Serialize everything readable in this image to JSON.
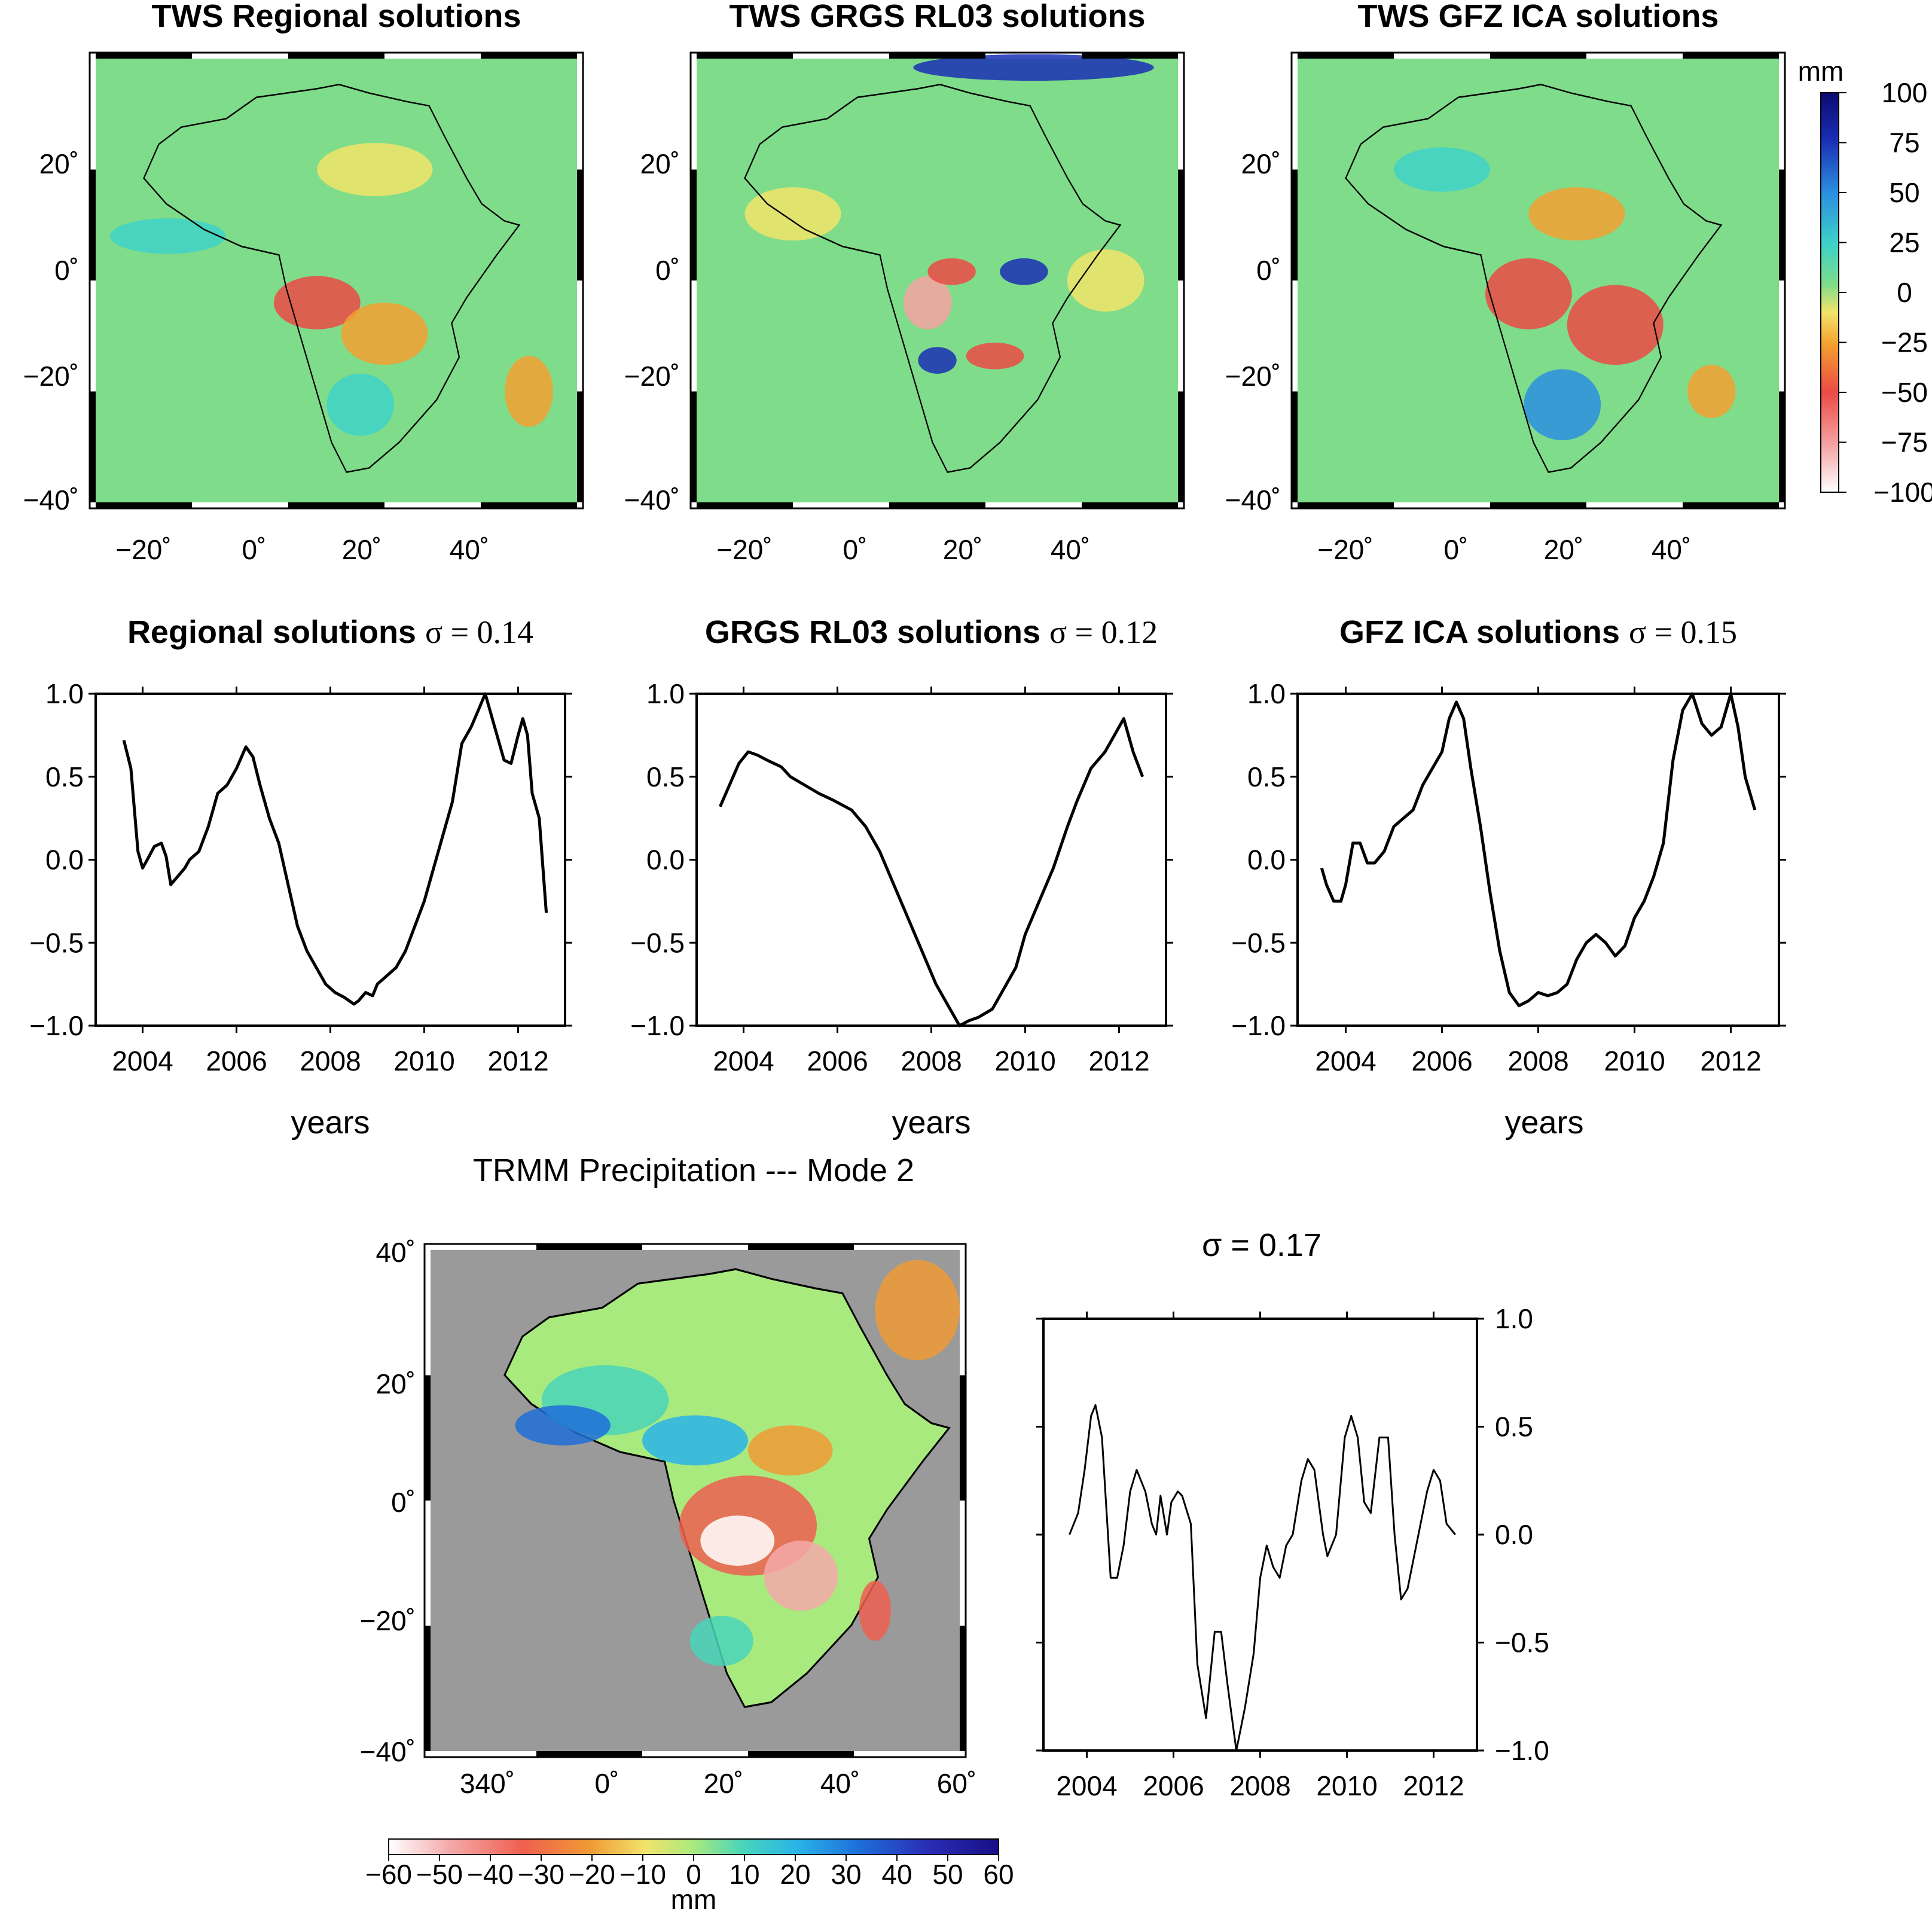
{
  "figure": {
    "map_titles": [
      "TWS Regional solutions",
      "TWS GRGS RL03 solutions",
      "TWS GFZ ICA solutions"
    ],
    "ts_titles": [
      {
        "name": "Regional solutions",
        "sigma": "σ = 0.14"
      },
      {
        "name": "GRGS RL03 solutions",
        "sigma": "σ = 0.12"
      },
      {
        "name": "GFZ ICA  solutions",
        "sigma": "σ = 0.15"
      }
    ],
    "trmm_title": "TRMM Precipitation --- Mode 2",
    "trmm_sigma": "σ = 0.17",
    "colorbar_unit": "mm",
    "colorbar_top_ticks": [
      "100",
      "75",
      "50",
      "25",
      "0",
      "−25",
      "−50",
      "−75",
      "−100"
    ],
    "colorbar_bottom_ticks": [
      "−60",
      "−50",
      "−40",
      "−30",
      "−20",
      "−10",
      "0",
      "10",
      "20",
      "30",
      "40",
      "50",
      "60"
    ],
    "map_lat_ticks": [
      "20˚",
      "0˚",
      "−20˚",
      "−40˚"
    ],
    "map_lon_ticks": [
      "−20˚",
      "0˚",
      "20˚",
      "40˚"
    ],
    "trmm_lat_ticks": [
      "40˚",
      "20˚",
      "0˚",
      "−20˚",
      "−40˚"
    ],
    "trmm_lon_ticks": [
      "340˚",
      "0˚",
      "20˚",
      "40˚",
      "60˚"
    ],
    "ts_y_ticks": [
      "1.0",
      "0.5",
      "0.0",
      "−0.5",
      "−1.0"
    ],
    "ts_x_ticks": [
      "2004",
      "2006",
      "2008",
      "2010",
      "2012"
    ],
    "xlabel": "years",
    "colors": {
      "ocean_green": "#7fdc8a",
      "land_gray": "#9a9a9a",
      "palette_top": [
        "#ffffff",
        "#f6a2a2",
        "#ec4a45",
        "#f3a030",
        "#f2e46a",
        "#7fdc8a",
        "#3ed2c8",
        "#2c8fe0",
        "#1a2fb5",
        "#0c0a70"
      ],
      "palette_bottom": [
        "#ffffff",
        "#f4a9a9",
        "#ef5f50",
        "#f09a35",
        "#f2e36c",
        "#a9ea7e",
        "#49d5b9",
        "#29b4e8",
        "#1e6fd8",
        "#2a2fb8",
        "#1a0f85"
      ]
    }
  },
  "chart_data": [
    {
      "type": "line",
      "title": "Regional solutions",
      "annotation": "σ = 0.14",
      "xlabel": "years",
      "ylabel": "",
      "xlim": [
        2003.0,
        2013.0
      ],
      "ylim": [
        -1.0,
        1.0
      ],
      "x": [
        2003.6,
        2003.75,
        2003.9,
        2004.0,
        2004.1,
        2004.25,
        2004.4,
        2004.5,
        2004.6,
        2004.75,
        2004.9,
        2005.0,
        2005.2,
        2005.4,
        2005.6,
        2005.8,
        2006.0,
        2006.2,
        2006.35,
        2006.5,
        2006.7,
        2006.9,
        2007.1,
        2007.3,
        2007.5,
        2007.7,
        2007.9,
        2008.1,
        2008.3,
        2008.5,
        2008.6,
        2008.75,
        2008.9,
        2009.0,
        2009.2,
        2009.4,
        2009.6,
        2009.8,
        2010.0,
        2010.2,
        2010.4,
        2010.6,
        2010.8,
        2011.0,
        2011.15,
        2011.3,
        2011.4,
        2011.55,
        2011.7,
        2011.85,
        2012.0,
        2012.1,
        2012.2,
        2012.3,
        2012.45,
        2012.6
      ],
      "values": [
        0.72,
        0.55,
        0.05,
        -0.05,
        0.0,
        0.08,
        0.1,
        0.02,
        -0.15,
        -0.1,
        -0.05,
        0.0,
        0.05,
        0.2,
        0.4,
        0.45,
        0.55,
        0.68,
        0.62,
        0.45,
        0.25,
        0.1,
        -0.15,
        -0.4,
        -0.55,
        -0.65,
        -0.75,
        -0.8,
        -0.83,
        -0.87,
        -0.85,
        -0.8,
        -0.82,
        -0.75,
        -0.7,
        -0.65,
        -0.55,
        -0.4,
        -0.25,
        -0.05,
        0.15,
        0.35,
        0.7,
        0.8,
        0.9,
        1.0,
        0.9,
        0.75,
        0.6,
        0.58,
        0.75,
        0.85,
        0.75,
        0.4,
        0.25,
        -0.32
      ]
    },
    {
      "type": "line",
      "title": "GRGS RL03 solutions",
      "annotation": "σ = 0.12",
      "xlabel": "years",
      "ylabel": "",
      "xlim": [
        2003.0,
        2013.0
      ],
      "ylim": [
        -1.0,
        1.0
      ],
      "x": [
        2003.5,
        2003.7,
        2003.9,
        2004.1,
        2004.3,
        2004.5,
        2004.8,
        2005.0,
        2005.3,
        2005.6,
        2005.9,
        2006.1,
        2006.3,
        2006.6,
        2006.9,
        2007.2,
        2007.5,
        2007.8,
        2008.1,
        2008.3,
        2008.5,
        2008.6,
        2008.8,
        2009.0,
        2009.3,
        2009.5,
        2009.8,
        2010.0,
        2010.3,
        2010.6,
        2010.9,
        2011.1,
        2011.4,
        2011.7,
        2011.9,
        2012.1,
        2012.3,
        2012.5
      ],
      "values": [
        0.32,
        0.45,
        0.58,
        0.65,
        0.63,
        0.6,
        0.56,
        0.5,
        0.45,
        0.4,
        0.36,
        0.33,
        0.3,
        0.2,
        0.05,
        -0.15,
        -0.35,
        -0.55,
        -0.75,
        -0.85,
        -0.95,
        -1.0,
        -0.97,
        -0.95,
        -0.9,
        -0.8,
        -0.65,
        -0.45,
        -0.25,
        -0.05,
        0.2,
        0.35,
        0.55,
        0.65,
        0.75,
        0.85,
        0.65,
        0.5
      ]
    },
    {
      "type": "line",
      "title": "GFZ ICA  solutions",
      "annotation": "σ = 0.15",
      "xlabel": "years",
      "ylabel": "",
      "xlim": [
        2003.0,
        2013.0
      ],
      "ylim": [
        -1.0,
        1.0
      ],
      "x": [
        2003.5,
        2003.6,
        2003.75,
        2003.9,
        2004.0,
        2004.15,
        2004.3,
        2004.45,
        2004.6,
        2004.8,
        2005.0,
        2005.2,
        2005.4,
        2005.6,
        2005.8,
        2006.0,
        2006.15,
        2006.3,
        2006.45,
        2006.6,
        2006.8,
        2007.0,
        2007.2,
        2007.4,
        2007.6,
        2007.8,
        2008.0,
        2008.2,
        2008.4,
        2008.6,
        2008.8,
        2009.0,
        2009.2,
        2009.4,
        2009.6,
        2009.8,
        2010.0,
        2010.2,
        2010.4,
        2010.6,
        2010.8,
        2011.0,
        2011.2,
        2011.4,
        2011.6,
        2011.8,
        2012.0,
        2012.15,
        2012.3,
        2012.5
      ],
      "values": [
        -0.05,
        -0.15,
        -0.25,
        -0.25,
        -0.15,
        0.1,
        0.1,
        -0.02,
        -0.02,
        0.05,
        0.2,
        0.25,
        0.3,
        0.45,
        0.55,
        0.65,
        0.85,
        0.95,
        0.85,
        0.55,
        0.2,
        -0.2,
        -0.55,
        -0.8,
        -0.88,
        -0.85,
        -0.8,
        -0.82,
        -0.8,
        -0.75,
        -0.6,
        -0.5,
        -0.45,
        -0.5,
        -0.58,
        -0.52,
        -0.35,
        -0.25,
        -0.1,
        0.1,
        0.6,
        0.9,
        1.0,
        0.82,
        0.75,
        0.8,
        1.0,
        0.8,
        0.5,
        0.3
      ]
    },
    {
      "type": "line",
      "title": "TRMM Precipitation --- Mode 2",
      "annotation": "σ = 0.17",
      "xlabel": "",
      "ylabel": "",
      "xlim": [
        2003.0,
        2013.0
      ],
      "ylim": [
        -1.0,
        1.0
      ],
      "x": [
        2003.6,
        2003.8,
        2003.95,
        2004.1,
        2004.2,
        2004.35,
        2004.55,
        2004.7,
        2004.85,
        2005.0,
        2005.15,
        2005.35,
        2005.5,
        2005.6,
        2005.7,
        2005.85,
        2005.95,
        2006.1,
        2006.2,
        2006.4,
        2006.55,
        2006.75,
        2006.95,
        2007.1,
        2007.25,
        2007.45,
        2007.65,
        2007.85,
        2008.0,
        2008.15,
        2008.3,
        2008.45,
        2008.6,
        2008.75,
        2008.95,
        2009.1,
        2009.25,
        2009.45,
        2009.55,
        2009.75,
        2009.95,
        2010.1,
        2010.25,
        2010.4,
        2010.55,
        2010.75,
        2010.95,
        2011.1,
        2011.25,
        2011.4,
        2011.6,
        2011.85,
        2012.0,
        2012.15,
        2012.3,
        2012.5
      ],
      "values": [
        0.0,
        0.1,
        0.3,
        0.55,
        0.6,
        0.45,
        -0.2,
        -0.2,
        -0.05,
        0.2,
        0.3,
        0.2,
        0.05,
        0.0,
        0.18,
        0.0,
        0.15,
        0.2,
        0.18,
        0.05,
        -0.6,
        -0.85,
        -0.45,
        -0.45,
        -0.7,
        -1.0,
        -0.8,
        -0.55,
        -0.2,
        -0.05,
        -0.15,
        -0.2,
        -0.05,
        0.0,
        0.25,
        0.35,
        0.3,
        0.0,
        -0.1,
        0.0,
        0.45,
        0.55,
        0.45,
        0.15,
        0.1,
        0.45,
        0.45,
        0.0,
        -0.3,
        -0.25,
        -0.05,
        0.2,
        0.3,
        0.25,
        0.05,
        0.0
      ]
    }
  ]
}
